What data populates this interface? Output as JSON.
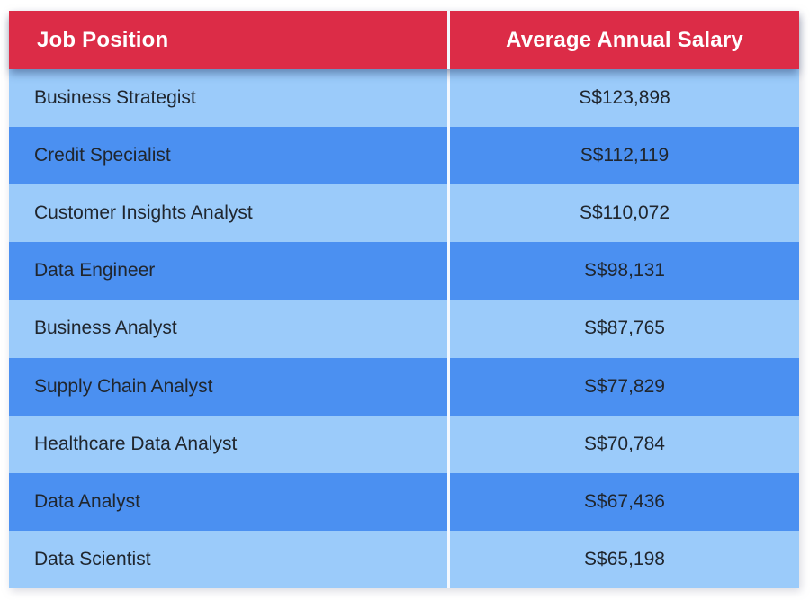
{
  "table": {
    "headers": {
      "position": "Job Position",
      "salary": "Average Annual Salary"
    },
    "rows": [
      {
        "position": "Business Strategist",
        "salary": "S$123,898"
      },
      {
        "position": "Credit Specialist",
        "salary": "S$112,119"
      },
      {
        "position": "Customer Insights Analyst",
        "salary": "S$110,072"
      },
      {
        "position": "Data Engineer",
        "salary": "S$98,131"
      },
      {
        "position": "Business Analyst",
        "salary": "S$87,765"
      },
      {
        "position": "Supply Chain Analyst",
        "salary": "S$77,829"
      },
      {
        "position": "Healthcare Data Analyst",
        "salary": "S$70,784"
      },
      {
        "position": "Data Analyst",
        "salary": "S$67,436"
      },
      {
        "position": "Data Scientist",
        "salary": "S$65,198"
      }
    ]
  },
  "colors": {
    "header_bg": "#dc2c47",
    "header_text": "#ffffff",
    "row_light": "#9bcbfa",
    "row_dark": "#4b90f1",
    "cell_text": "#20262e",
    "divider": "#f3f8ff",
    "page_bg": "#ffffff"
  },
  "chart_data": {
    "type": "table",
    "columns": [
      "Job Position",
      "Average Annual Salary"
    ],
    "categories": [
      "Business Strategist",
      "Credit Specialist",
      "Customer Insights Analyst",
      "Data Engineer",
      "Business Analyst",
      "Supply Chain Analyst",
      "Healthcare Data Analyst",
      "Data Analyst",
      "Data Scientist"
    ],
    "values": [
      123898,
      112119,
      110072,
      98131,
      87765,
      77829,
      70784,
      67436,
      65198
    ],
    "currency_prefix": "S$",
    "layout": "two-column striped table, red header, alternating blue rows, white column divider"
  }
}
